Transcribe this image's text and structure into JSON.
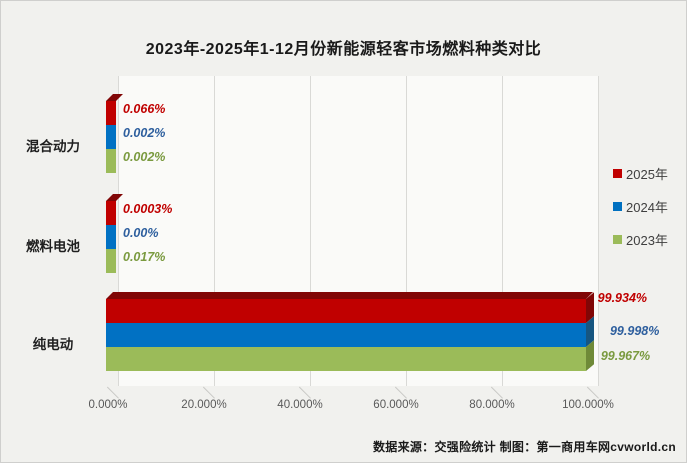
{
  "title": "2023年-2025年1-12月份新能源轻客市场燃料种类对比",
  "source_note": "数据来源：交强险统计 制图：第一商用车网cvworld.cn",
  "palette": {
    "background": "#f1f1ee",
    "plot_background": "#fafaf8",
    "gridline": "#d9d9d6",
    "leader_line": "#a6a6a6",
    "axis_text": "#595959",
    "title_text": "#1a1a1a"
  },
  "legend": [
    {
      "label": "2025年",
      "color": "#c00000"
    },
    {
      "label": "2024年",
      "color": "#0070c0"
    },
    {
      "label": "2023年",
      "color": "#9bbb59"
    }
  ],
  "chart_data": {
    "type": "bar",
    "orientation": "horizontal",
    "title": "2023年-2025年1-12月份新能源轻客市场燃料种类对比",
    "xlabel": "",
    "ylabel": "",
    "categories": [
      "混合动力",
      "燃料电池",
      "纯电动"
    ],
    "series": [
      {
        "name": "2025年",
        "color": "#c00000",
        "dark_color": "#800606",
        "label_color": "#c00000",
        "values": [
          0.066,
          0.0003,
          99.934
        ],
        "labels": [
          "0.066%",
          "0.0003%",
          "99.934%"
        ]
      },
      {
        "name": "2024年",
        "color": "#0171c3",
        "dark_color": "#175680",
        "label_color": "#2e5f9e",
        "values": [
          0.002,
          0.0,
          99.998
        ],
        "labels": [
          "0.002%",
          "0.00%",
          "99.998%"
        ]
      },
      {
        "name": "2023年",
        "color": "#9bbb59",
        "dark_color": "#6f8a38",
        "label_color": "#7a9a3f",
        "values": [
          0.002,
          0.017,
          99.967
        ],
        "labels": [
          "0.002%",
          "0.017%",
          "99.967%"
        ]
      }
    ],
    "x_ticks": [
      "0.000%",
      "20.000%",
      "40.000%",
      "60.000%",
      "80.000%",
      "100.000%"
    ],
    "x_tick_values": [
      0,
      20,
      40,
      60,
      80,
      100
    ],
    "xlim": [
      0,
      100
    ],
    "grid": true,
    "legend_position": "right",
    "effect": "3d"
  }
}
